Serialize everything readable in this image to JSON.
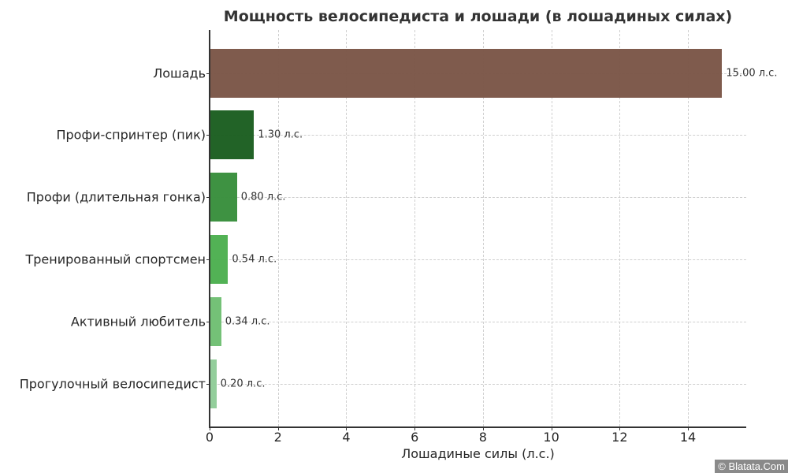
{
  "chart_data": {
    "type": "bar",
    "orientation": "horizontal",
    "title": "Мощность велосипедиста и лошади (в лошадиных силах)",
    "xlabel": "Лошадиные силы (л.с.)",
    "ylabel": "",
    "xlim": [
      0,
      15.7
    ],
    "xticks": [
      0,
      2,
      4,
      6,
      8,
      10,
      12,
      14
    ],
    "grid": true,
    "categories": [
      "Лошадь",
      "Профи-спринтер (пик)",
      "Профи (длительная гонка)",
      "Тренированный спортсмен",
      "Активный любитель",
      "Прогулочный велосипедист"
    ],
    "values": [
      15.0,
      1.3,
      0.8,
      0.54,
      0.34,
      0.2
    ],
    "data_labels": [
      "15.00 л.с.",
      "1.30 л.с.",
      "0.80 л.с.",
      "0.54 л.с.",
      "0.34 л.с.",
      "0.20 л.с."
    ],
    "colors": [
      "#7b5647",
      "#1b5e20",
      "#388e3c",
      "#4caf50",
      "#6fbf73",
      "#8fcc98"
    ]
  },
  "watermark": "© Blatata.Com"
}
